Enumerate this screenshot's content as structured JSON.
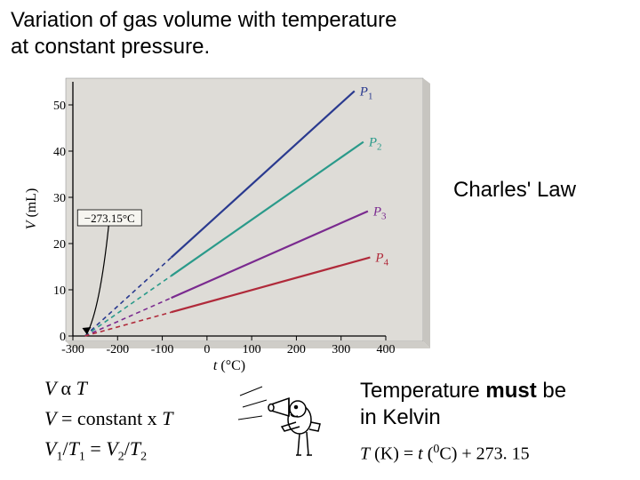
{
  "title_line1": "Variation of gas volume with temperature",
  "title_line2": "at constant pressure.",
  "law_name": "Charles' Law",
  "formulas": {
    "prop": {
      "V": "V",
      "alpha": "α",
      "T": "T"
    },
    "const": {
      "V": "V",
      "eq": " = constant x ",
      "T": "T"
    },
    "ratio": {
      "V1": "V",
      "s1": "1",
      "slash1": "/",
      "T1": "T",
      "s1b": "1",
      "eq": " =  ",
      "V2": "V",
      "s2": "2",
      "slash2": "/",
      "T2": "T",
      "s2b": "2"
    }
  },
  "temp_note": {
    "t1": "Temperature ",
    "must": "must",
    "t2": " be",
    "line2": "in Kelvin"
  },
  "kelvin": {
    "T": "T",
    "paren1": " (K) = ",
    "t": "t",
    "paren2": " (",
    "zero": "0",
    "C": "C) + 273. 15"
  },
  "chart": {
    "type": "line",
    "background_color": "#dedcd7",
    "plot_bg": "#dedcd7",
    "axis_color": "#000000",
    "x": {
      "label": "t (°C)",
      "min": -300,
      "max": 400,
      "ticks": [
        -300,
        -200,
        -100,
        0,
        100,
        200,
        300,
        400
      ],
      "fontsize": 14
    },
    "y": {
      "label": "V (mL)",
      "min": 0,
      "max": 55,
      "ticks": [
        0,
        10,
        20,
        30,
        40,
        50
      ],
      "fontsize": 14
    },
    "zero_marker": {
      "x": -273.15,
      "label": "−273.15°C",
      "label_fontsize": 13
    },
    "dash_end_x": -80,
    "series": [
      {
        "name": "P1",
        "color": "#2a3a8f",
        "end_x": 330,
        "end_y": 53,
        "label": "P₁"
      },
      {
        "name": "P2",
        "color": "#2a9a8a",
        "end_x": 350,
        "end_y": 42,
        "label": "P₂"
      },
      {
        "name": "P3",
        "color": "#7a2a8f",
        "end_x": 360,
        "end_y": 27,
        "label": "P₃"
      },
      {
        "name": "P4",
        "color": "#b02a3a",
        "end_x": 365,
        "end_y": 17,
        "label": "P₄"
      }
    ],
    "label_fontsize": 15,
    "line_width_solid": 2.2,
    "line_width_dash": 1.6,
    "dash_pattern": "5,4"
  }
}
